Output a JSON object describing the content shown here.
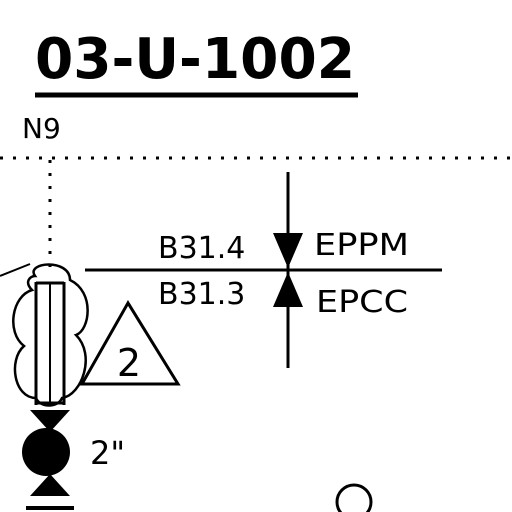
{
  "drawing": {
    "title": "03-U-1002",
    "nozzle_tag": "N9",
    "spec_break": {
      "upper_spec": "B31.4",
      "lower_spec": "B31.3",
      "upper_scope": "EPPM",
      "lower_scope": "EPCC"
    },
    "revision_triangle": "2",
    "valve_size": "2\""
  },
  "colors": {
    "ink": "#000000",
    "background": "#ffffff"
  }
}
